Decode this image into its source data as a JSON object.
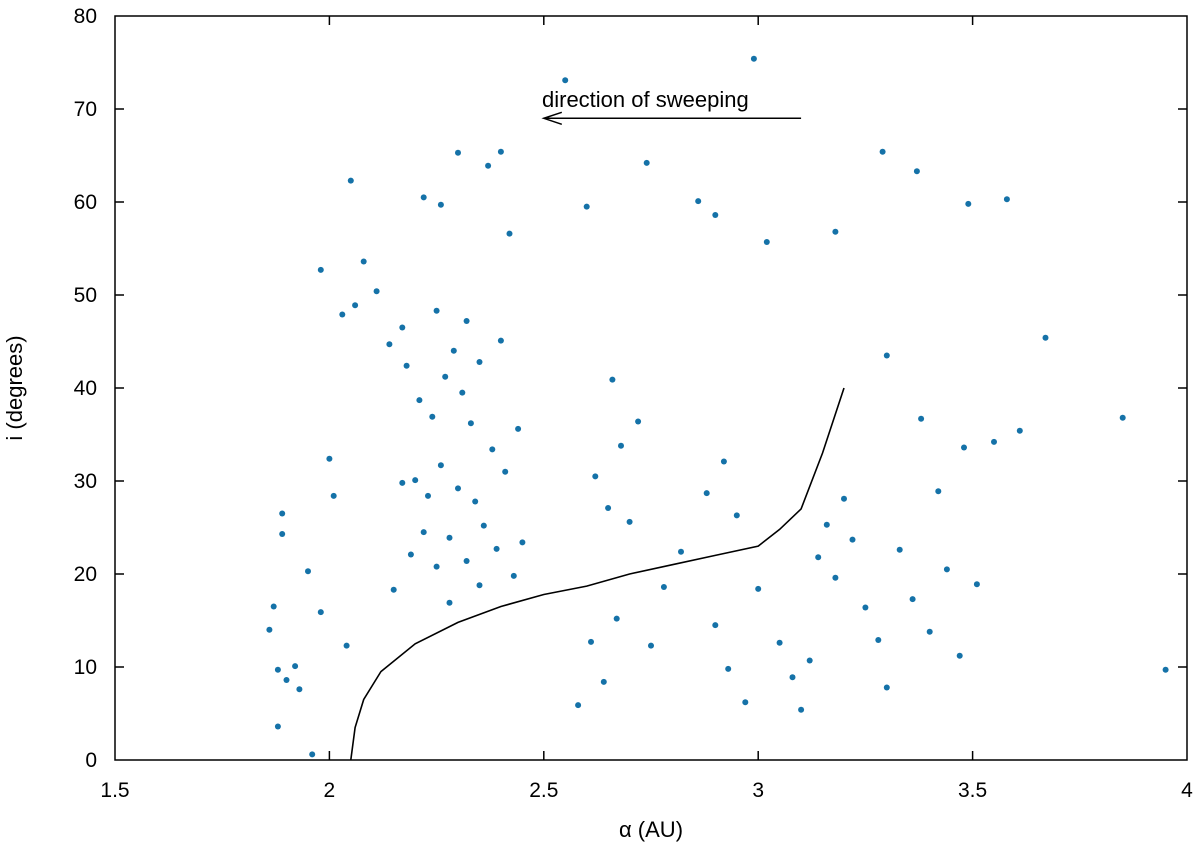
{
  "chart_data": {
    "type": "scatter",
    "xlabel": "α (AU)",
    "ylabel": "i (degrees)",
    "xlim": [
      1.5,
      4
    ],
    "ylim": [
      0,
      80
    ],
    "x_ticks": [
      "1.5",
      "2",
      "2.5",
      "3",
      "3.5",
      "4"
    ],
    "y_ticks": [
      "0",
      "10",
      "20",
      "30",
      "40",
      "50",
      "60",
      "70",
      "80"
    ],
    "grid": false,
    "legend": "none",
    "point_color": "#1572a8",
    "annotation": {
      "text": "direction of sweeping",
      "arrow_from": [
        3.1,
        69
      ],
      "arrow_to": [
        2.5,
        69
      ]
    },
    "sweep_curve": {
      "color": "#000000",
      "x": [
        2.05,
        2.06,
        2.08,
        2.12,
        2.2,
        2.3,
        2.4,
        2.5,
        2.6,
        2.7,
        2.8,
        2.9,
        3.0,
        3.05,
        3.1,
        3.15,
        3.2
      ],
      "y": [
        0,
        3.5,
        6.5,
        9.5,
        12.5,
        14.8,
        16.5,
        17.8,
        18.7,
        20.0,
        21.0,
        22.0,
        23.0,
        24.8,
        27.0,
        33.0,
        40.0
      ]
    },
    "scatter_points": [
      [
        1.86,
        14.0
      ],
      [
        1.87,
        16.5
      ],
      [
        1.88,
        9.7
      ],
      [
        1.88,
        3.6
      ],
      [
        1.89,
        26.5
      ],
      [
        1.89,
        24.3
      ],
      [
        1.9,
        8.6
      ],
      [
        1.92,
        10.1
      ],
      [
        1.93,
        7.6
      ],
      [
        1.95,
        20.3
      ],
      [
        1.96,
        0.6
      ],
      [
        1.98,
        15.9
      ],
      [
        1.98,
        52.7
      ],
      [
        2.0,
        32.4
      ],
      [
        2.01,
        28.4
      ],
      [
        2.03,
        47.9
      ],
      [
        2.04,
        12.3
      ],
      [
        2.05,
        62.3
      ],
      [
        2.06,
        48.9
      ],
      [
        2.08,
        53.6
      ],
      [
        2.11,
        50.4
      ],
      [
        2.14,
        44.7
      ],
      [
        2.17,
        29.8
      ],
      [
        2.22,
        60.5
      ],
      [
        2.26,
        59.7
      ],
      [
        2.3,
        65.3
      ],
      [
        2.37,
        63.9
      ],
      [
        2.4,
        65.4
      ],
      [
        2.42,
        56.6
      ],
      [
        2.55,
        73.1
      ],
      [
        2.6,
        59.5
      ],
      [
        2.74,
        64.2
      ],
      [
        2.86,
        60.1
      ],
      [
        2.9,
        58.6
      ],
      [
        2.99,
        75.4
      ],
      [
        3.02,
        55.7
      ],
      [
        3.18,
        56.8
      ],
      [
        3.29,
        65.4
      ],
      [
        3.37,
        63.3
      ],
      [
        3.49,
        59.8
      ],
      [
        3.58,
        60.3
      ],
      [
        3.67,
        45.4
      ],
      [
        3.85,
        36.8
      ],
      [
        3.95,
        9.7
      ],
      [
        3.61,
        35.4
      ],
      [
        3.55,
        34.2
      ],
      [
        3.48,
        33.6
      ],
      [
        3.51,
        18.9
      ],
      [
        2.18,
        42.4
      ],
      [
        2.21,
        38.7
      ],
      [
        2.24,
        36.9
      ],
      [
        2.27,
        41.2
      ],
      [
        2.29,
        44.0
      ],
      [
        2.31,
        39.5
      ],
      [
        2.33,
        36.2
      ],
      [
        2.35,
        42.8
      ],
      [
        2.2,
        30.1
      ],
      [
        2.23,
        28.4
      ],
      [
        2.26,
        31.7
      ],
      [
        2.3,
        29.2
      ],
      [
        2.34,
        27.8
      ],
      [
        2.38,
        33.4
      ],
      [
        2.41,
        31.0
      ],
      [
        2.44,
        35.6
      ],
      [
        2.19,
        22.1
      ],
      [
        2.22,
        24.5
      ],
      [
        2.25,
        20.8
      ],
      [
        2.28,
        23.9
      ],
      [
        2.32,
        21.4
      ],
      [
        2.36,
        25.2
      ],
      [
        2.39,
        22.7
      ],
      [
        2.43,
        19.8
      ],
      [
        2.17,
        46.5
      ],
      [
        2.25,
        48.3
      ],
      [
        2.32,
        47.2
      ],
      [
        2.4,
        45.1
      ],
      [
        2.15,
        18.3
      ],
      [
        2.28,
        16.9
      ],
      [
        2.35,
        18.8
      ],
      [
        2.45,
        23.4
      ],
      [
        2.62,
        30.5
      ],
      [
        2.65,
        27.1
      ],
      [
        2.68,
        33.8
      ],
      [
        2.7,
        25.6
      ],
      [
        2.72,
        36.4
      ],
      [
        2.66,
        40.9
      ],
      [
        2.61,
        12.7
      ],
      [
        2.64,
        8.4
      ],
      [
        2.58,
        5.9
      ],
      [
        2.67,
        15.2
      ],
      [
        2.75,
        12.3
      ],
      [
        2.78,
        18.6
      ],
      [
        2.82,
        22.4
      ],
      [
        2.88,
        28.7
      ],
      [
        2.92,
        32.1
      ],
      [
        2.95,
        26.3
      ],
      [
        2.9,
        14.5
      ],
      [
        2.93,
        9.8
      ],
      [
        2.97,
        6.2
      ],
      [
        3.0,
        18.4
      ],
      [
        3.05,
        12.6
      ],
      [
        3.08,
        8.9
      ],
      [
        3.1,
        5.4
      ],
      [
        3.12,
        10.7
      ],
      [
        3.14,
        21.8
      ],
      [
        3.16,
        25.3
      ],
      [
        3.18,
        19.6
      ],
      [
        3.2,
        28.1
      ],
      [
        3.22,
        23.7
      ],
      [
        3.25,
        16.4
      ],
      [
        3.28,
        12.9
      ],
      [
        3.3,
        7.8
      ],
      [
        3.33,
        22.6
      ],
      [
        3.36,
        17.3
      ],
      [
        3.4,
        13.8
      ],
      [
        3.44,
        20.5
      ],
      [
        3.47,
        11.2
      ],
      [
        3.42,
        28.9
      ],
      [
        3.38,
        36.7
      ],
      [
        3.3,
        43.5
      ]
    ]
  }
}
